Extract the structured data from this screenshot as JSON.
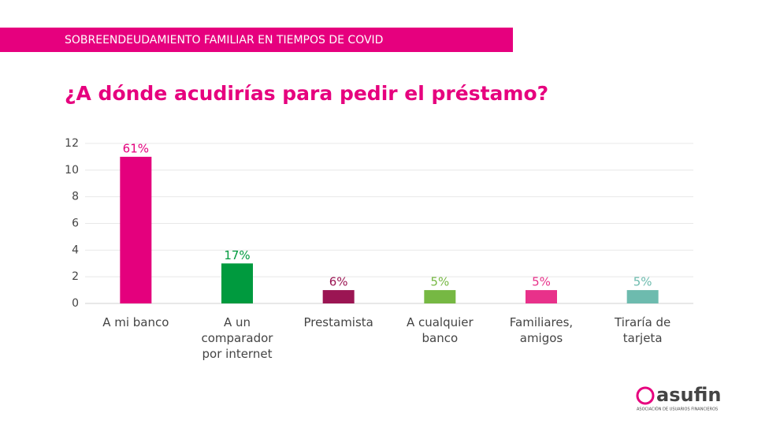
{
  "header": {
    "banner": "SOBREENDEUDAMIENTO FAMILIAR EN TIEMPOS DE COVID"
  },
  "logo": {
    "name": "asufin",
    "tagline": "ASOCIACIÓN DE USUARIOS FINANCIEROS"
  },
  "chart_data": {
    "type": "bar",
    "title": "¿A dónde acudirías para pedir el préstamo?",
    "categories": [
      "A mi banco",
      "A un\ncomparador\npor internet",
      "Prestamista",
      "A cualquier\nbanco",
      "Familiares,\namigos",
      "Tiraría de\ntarjeta"
    ],
    "values": [
      11,
      3,
      1,
      1,
      1,
      1
    ],
    "bar_labels": [
      "61%",
      "17%",
      "6%",
      "5%",
      "5%",
      "5%"
    ],
    "colors": [
      "#e4007d",
      "#009a3e",
      "#9b1553",
      "#76b843",
      "#e8318a",
      "#6dbbae"
    ],
    "ylim": [
      0,
      12
    ],
    "yticks": [
      0,
      2,
      4,
      6,
      8,
      10,
      12
    ],
    "grid": true
  }
}
